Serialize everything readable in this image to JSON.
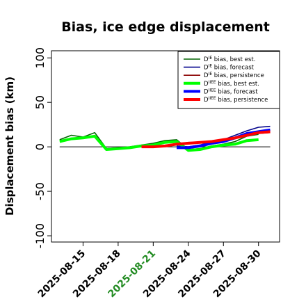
{
  "chart_data": {
    "type": "line",
    "title": "Bias, ice edge displacement",
    "ylabel": "Displacement bias (km)",
    "xlabel": "",
    "ylim": [
      -107,
      108
    ],
    "yticks": [
      100,
      50,
      0,
      -50,
      -100
    ],
    "x_ticks": [
      {
        "day": 1,
        "label": "2025-08-15",
        "color": "#000000"
      },
      {
        "day": 4,
        "label": "2025-08-18",
        "color": "#000000"
      },
      {
        "day": 7,
        "label": "2025-08-21",
        "color": "#228b22"
      },
      {
        "day": 10,
        "label": "2025-08-24",
        "color": "#000000"
      },
      {
        "day": 13,
        "label": "2025-08-27",
        "color": "#000000"
      },
      {
        "day": 16,
        "label": "2025-08-30",
        "color": "#000000"
      }
    ],
    "xlim": [
      -1.7,
      17.8
    ],
    "zero_line": true,
    "grid": false,
    "legend_position": "top-right",
    "series": [
      {
        "name_prefix": "D",
        "name_sup": "IE",
        "name_suffix": " bias, best est.",
        "color": "#006400",
        "width": 1.6,
        "x": [
          -1,
          0,
          1,
          2,
          3,
          4,
          5,
          6,
          7,
          8,
          9,
          10,
          11,
          12,
          13,
          14,
          15,
          16
        ],
        "y": [
          8,
          13,
          11,
          16,
          -2,
          -1,
          0,
          2,
          4,
          7,
          8,
          -3,
          -2,
          1,
          3,
          6,
          12,
          14
        ]
      },
      {
        "name_prefix": "D",
        "name_sup": "IE",
        "name_suffix": " bias, forecast",
        "color": "#00008b",
        "width": 1.6,
        "x": [
          9,
          10,
          11,
          12,
          13,
          14,
          15,
          16,
          17
        ],
        "y": [
          1,
          0,
          2,
          6,
          8,
          13,
          18,
          22,
          23
        ]
      },
      {
        "name_prefix": "D",
        "name_sup": "IE",
        "name_suffix": " bias, persistence",
        "color": "#8b0000",
        "width": 1.6,
        "x": [
          7,
          8,
          9,
          10,
          11,
          12,
          13,
          14,
          15,
          16,
          17
        ],
        "y": [
          0,
          1,
          3,
          5,
          5,
          6,
          8,
          10,
          13,
          15,
          16
        ]
      },
      {
        "name_prefix": "D",
        "name_sup": "IIEE",
        "name_suffix": " bias, best est.",
        "color": "#00ff00",
        "width": 4,
        "x": [
          -1,
          0,
          1,
          2,
          3,
          4,
          5,
          6,
          7,
          8,
          9,
          10,
          11,
          12,
          13,
          14,
          15,
          16
        ],
        "y": [
          6,
          9,
          10,
          12,
          -3,
          -2,
          -1,
          1,
          2,
          5,
          6,
          -4,
          -3,
          0,
          2,
          3,
          7,
          8
        ]
      },
      {
        "name_prefix": "D",
        "name_sup": "IIEE",
        "name_suffix": " bias, forecast",
        "color": "#0000ff",
        "width": 4,
        "x": [
          9,
          10,
          11,
          12,
          13,
          14,
          15,
          16,
          17
        ],
        "y": [
          -1,
          -1,
          1,
          4,
          6,
          10,
          15,
          17,
          19
        ]
      },
      {
        "name_prefix": "D",
        "name_sup": "IIEE",
        "name_suffix": " bias, persistence",
        "color": "#ff0000",
        "width": 4,
        "x": [
          6,
          7,
          8,
          9,
          10,
          11,
          12,
          13,
          14,
          15,
          16,
          17
        ],
        "y": [
          0,
          0,
          1,
          3,
          4,
          5,
          6,
          8,
          10,
          13,
          16,
          17
        ]
      }
    ]
  }
}
